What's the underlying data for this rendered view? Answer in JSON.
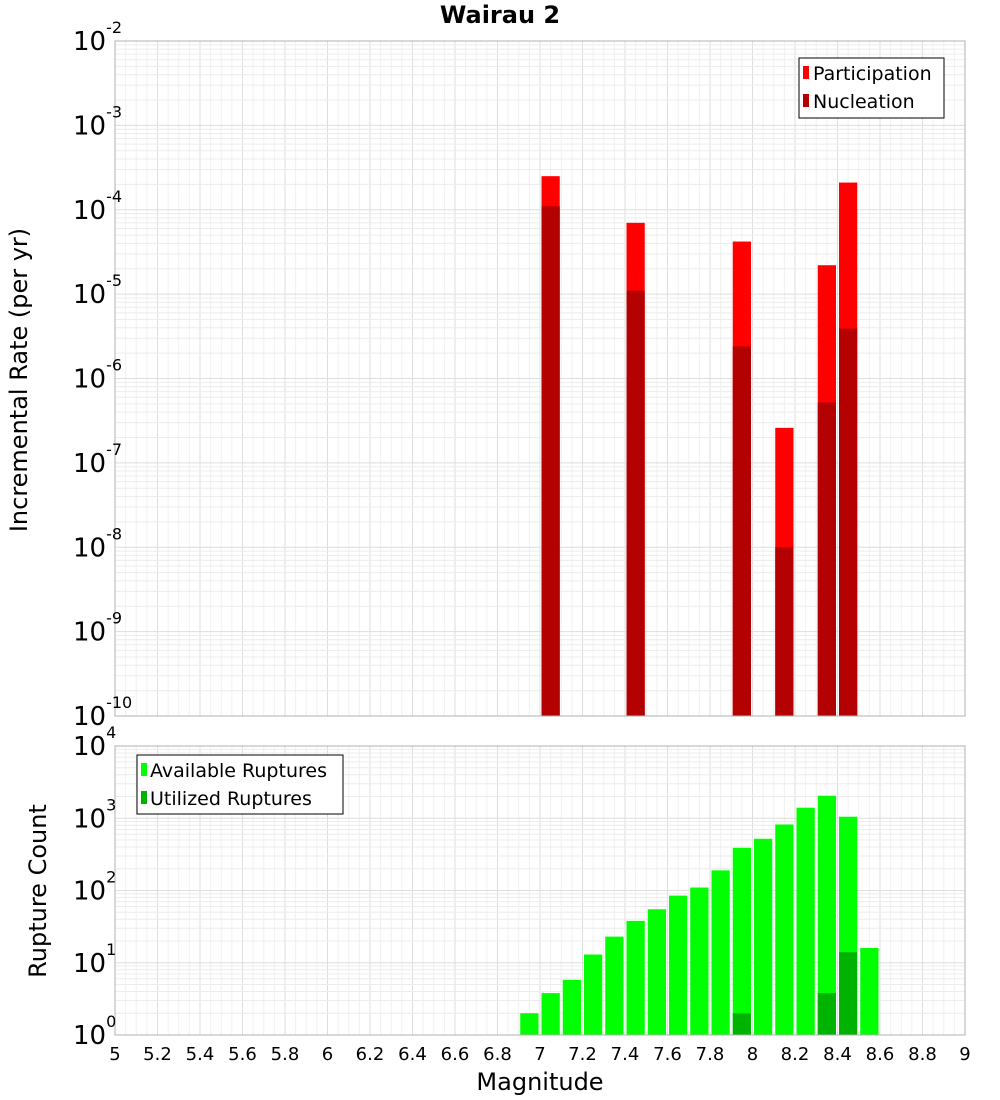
{
  "chart_data": [
    {
      "type": "bar",
      "title": "Wairau 2",
      "ylabel": "Incremental Rate (per yr)",
      "yscale": "log",
      "ylim_exponents": [
        -10,
        -2
      ],
      "xlim": [
        5,
        9
      ],
      "grid": true,
      "legend_position": "top-right",
      "series": [
        {
          "name": "Participation",
          "color": "#ff0000",
          "points": [
            {
              "x": 7.05,
              "y": 0.00025
            },
            {
              "x": 7.45,
              "y": 7e-05
            },
            {
              "x": 7.95,
              "y": 4.2e-05
            },
            {
              "x": 8.15,
              "y": 2.6e-07
            },
            {
              "x": 8.35,
              "y": 2.2e-05
            },
            {
              "x": 8.45,
              "y": 0.00021
            }
          ]
        },
        {
          "name": "Nucleation",
          "color": "#b30000",
          "points": [
            {
              "x": 7.05,
              "y": 0.00011
            },
            {
              "x": 7.45,
              "y": 1.1e-05
            },
            {
              "x": 7.95,
              "y": 2.4e-06
            },
            {
              "x": 8.15,
              "y": 1e-08
            },
            {
              "x": 8.35,
              "y": 5.2e-07
            },
            {
              "x": 8.45,
              "y": 3.9e-06
            }
          ]
        }
      ]
    },
    {
      "type": "bar",
      "xlabel": "Magnitude",
      "ylabel": "Rupture Count",
      "yscale": "log",
      "ylim_exponents": [
        0,
        4
      ],
      "xlim": [
        5,
        9
      ],
      "xticks": [
        "5",
        "5.2",
        "5.4",
        "5.6",
        "5.8",
        "6",
        "6.2",
        "6.4",
        "6.6",
        "6.8",
        "7",
        "7.2",
        "7.4",
        "7.6",
        "7.8",
        "8",
        "8.2",
        "8.4",
        "8.6",
        "8.8",
        "9"
      ],
      "grid": true,
      "legend_position": "top-left",
      "series": [
        {
          "name": "Available Ruptures",
          "color": "#00ff00",
          "points": [
            {
              "x": 6.65,
              "y": 1
            },
            {
              "x": 6.85,
              "y": 1
            },
            {
              "x": 6.95,
              "y": 2
            },
            {
              "x": 7.05,
              "y": 3.8
            },
            {
              "x": 7.15,
              "y": 5.8
            },
            {
              "x": 7.25,
              "y": 13
            },
            {
              "x": 7.35,
              "y": 23
            },
            {
              "x": 7.45,
              "y": 38
            },
            {
              "x": 7.55,
              "y": 55
            },
            {
              "x": 7.65,
              "y": 85
            },
            {
              "x": 7.75,
              "y": 110
            },
            {
              "x": 7.85,
              "y": 190
            },
            {
              "x": 7.95,
              "y": 390
            },
            {
              "x": 8.05,
              "y": 520
            },
            {
              "x": 8.15,
              "y": 820
            },
            {
              "x": 8.25,
              "y": 1400
            },
            {
              "x": 8.35,
              "y": 2050
            },
            {
              "x": 8.45,
              "y": 1050
            },
            {
              "x": 8.55,
              "y": 16
            }
          ]
        },
        {
          "name": "Utilized Ruptures",
          "color": "#00b300",
          "points": [
            {
              "x": 7.05,
              "y": 1
            },
            {
              "x": 7.45,
              "y": 1
            },
            {
              "x": 7.95,
              "y": 2
            },
            {
              "x": 8.15,
              "y": 1
            },
            {
              "x": 8.25,
              "y": 1
            },
            {
              "x": 8.35,
              "y": 3.8
            },
            {
              "x": 8.45,
              "y": 14
            }
          ]
        }
      ]
    }
  ]
}
